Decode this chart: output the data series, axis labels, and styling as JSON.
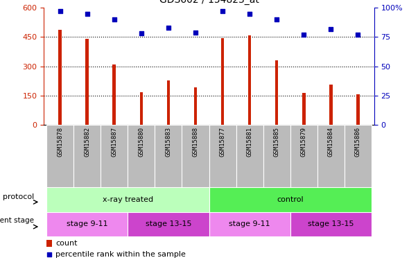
{
  "title": "GDS602 / 154823_at",
  "samples": [
    "GSM15878",
    "GSM15882",
    "GSM15887",
    "GSM15880",
    "GSM15883",
    "GSM15888",
    "GSM15877",
    "GSM15881",
    "GSM15885",
    "GSM15879",
    "GSM15884",
    "GSM15886"
  ],
  "counts": [
    487,
    440,
    308,
    168,
    228,
    192,
    443,
    458,
    332,
    162,
    208,
    155
  ],
  "percentile_ranks": [
    97,
    95,
    90,
    78,
    83,
    79,
    97,
    95,
    90,
    77,
    82,
    77
  ],
  "bar_color": "#CC2200",
  "dot_color": "#0000BB",
  "left_yticks": [
    0,
    150,
    300,
    450,
    600
  ],
  "right_yticks": [
    0,
    25,
    50,
    75,
    100
  ],
  "right_ytick_labels": [
    "0",
    "25",
    "50",
    "75",
    "100%"
  ],
  "protocol_color_xray": "#BBFFBB",
  "protocol_color_ctrl": "#55EE55",
  "dev_stage_color_odd": "#EE88EE",
  "dev_stage_color_even": "#CC44CC",
  "tick_label_bg": "#BBBBBB",
  "legend_count_color": "#CC2200",
  "legend_dot_color": "#0000BB"
}
